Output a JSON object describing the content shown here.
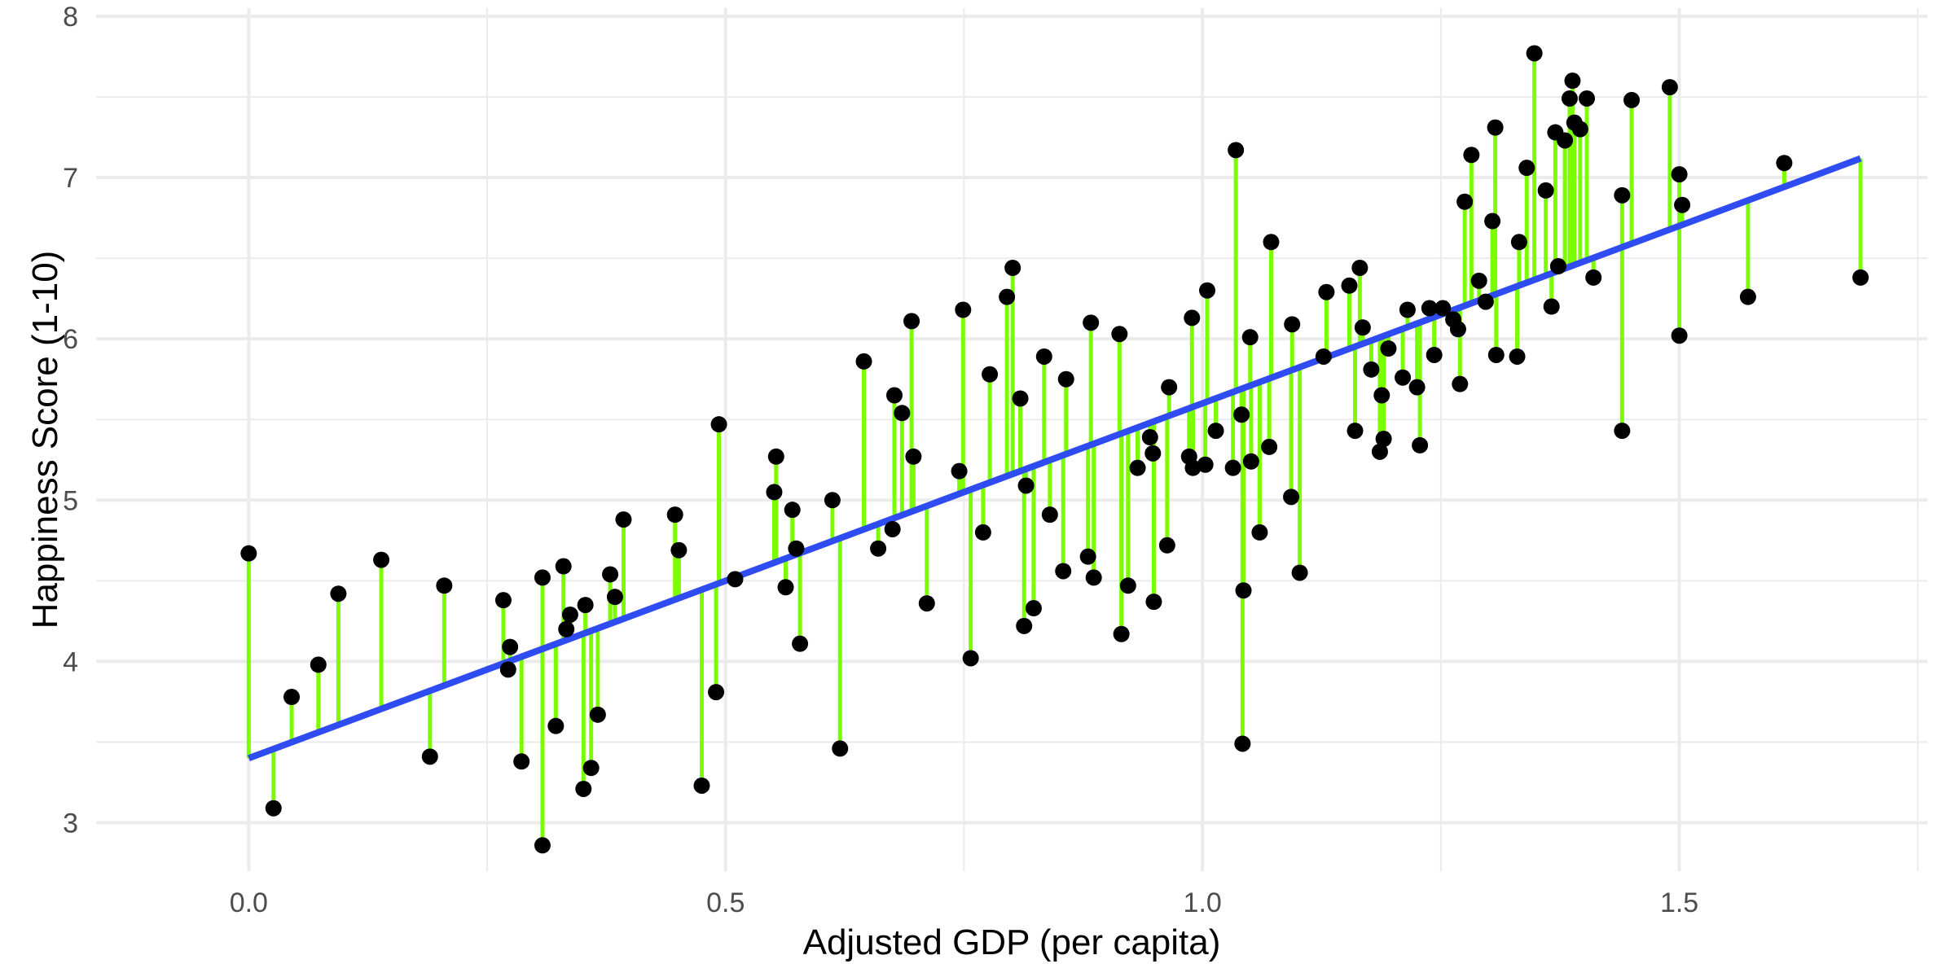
{
  "chart_data": {
    "type": "scatter",
    "title": "",
    "xlabel": "Adjusted GDP (per capita)",
    "ylabel": "Happiness Score (1-10)",
    "xlim": [
      -0.16,
      1.76
    ],
    "ylim": [
      2.7,
      8.05
    ],
    "x_ticks": [
      0.0,
      0.5,
      1.0,
      1.5
    ],
    "x_tick_labels": [
      "0.0",
      "0.5",
      "1.0",
      "1.5"
    ],
    "y_ticks": [
      3,
      4,
      5,
      6,
      7,
      8
    ],
    "y_tick_labels": [
      "3",
      "4",
      "5",
      "6",
      "7",
      "8"
    ],
    "grid": true,
    "legend": "none",
    "regression_line": {
      "intercept": 3.4,
      "slope": 2.2
    },
    "colors": {
      "points": "#000000",
      "residuals": "#7cfc00",
      "fit": "#2e4cf2",
      "grid": "#ebebeb"
    },
    "points": [
      {
        "x": 0.0,
        "y": 4.67
      },
      {
        "x": 0.026,
        "y": 3.09
      },
      {
        "x": 0.045,
        "y": 3.78
      },
      {
        "x": 0.073,
        "y": 3.98
      },
      {
        "x": 0.094,
        "y": 4.42
      },
      {
        "x": 0.139,
        "y": 4.63
      },
      {
        "x": 0.19,
        "y": 3.41
      },
      {
        "x": 0.205,
        "y": 4.47
      },
      {
        "x": 0.267,
        "y": 4.38
      },
      {
        "x": 0.274,
        "y": 4.09
      },
      {
        "x": 0.272,
        "y": 3.95
      },
      {
        "x": 0.286,
        "y": 3.38
      },
      {
        "x": 0.308,
        "y": 4.52
      },
      {
        "x": 0.308,
        "y": 2.86
      },
      {
        "x": 0.322,
        "y": 3.6
      },
      {
        "x": 0.33,
        "y": 4.59
      },
      {
        "x": 0.333,
        "y": 4.2
      },
      {
        "x": 0.337,
        "y": 4.29
      },
      {
        "x": 0.351,
        "y": 3.21
      },
      {
        "x": 0.353,
        "y": 4.35
      },
      {
        "x": 0.359,
        "y": 3.34
      },
      {
        "x": 0.366,
        "y": 3.67
      },
      {
        "x": 0.379,
        "y": 4.54
      },
      {
        "x": 0.384,
        "y": 4.4
      },
      {
        "x": 0.393,
        "y": 4.88
      },
      {
        "x": 0.447,
        "y": 4.91
      },
      {
        "x": 0.451,
        "y": 4.69
      },
      {
        "x": 0.475,
        "y": 3.23
      },
      {
        "x": 0.49,
        "y": 3.81
      },
      {
        "x": 0.493,
        "y": 5.47
      },
      {
        "x": 0.51,
        "y": 4.51
      },
      {
        "x": 0.551,
        "y": 5.05
      },
      {
        "x": 0.553,
        "y": 5.27
      },
      {
        "x": 0.563,
        "y": 4.46
      },
      {
        "x": 0.57,
        "y": 4.94
      },
      {
        "x": 0.574,
        "y": 4.7
      },
      {
        "x": 0.578,
        "y": 4.11
      },
      {
        "x": 0.612,
        "y": 5.0
      },
      {
        "x": 0.62,
        "y": 3.46
      },
      {
        "x": 0.645,
        "y": 5.86
      },
      {
        "x": 0.66,
        "y": 4.7
      },
      {
        "x": 0.675,
        "y": 4.82
      },
      {
        "x": 0.677,
        "y": 5.65
      },
      {
        "x": 0.685,
        "y": 5.54
      },
      {
        "x": 0.695,
        "y": 6.11
      },
      {
        "x": 0.697,
        "y": 5.27
      },
      {
        "x": 0.711,
        "y": 4.36
      },
      {
        "x": 0.745,
        "y": 5.18
      },
      {
        "x": 0.749,
        "y": 6.18
      },
      {
        "x": 0.757,
        "y": 4.02
      },
      {
        "x": 0.77,
        "y": 4.8
      },
      {
        "x": 0.777,
        "y": 5.78
      },
      {
        "x": 0.795,
        "y": 6.26
      },
      {
        "x": 0.801,
        "y": 6.44
      },
      {
        "x": 0.809,
        "y": 5.63
      },
      {
        "x": 0.813,
        "y": 4.22
      },
      {
        "x": 0.815,
        "y": 5.09
      },
      {
        "x": 0.823,
        "y": 4.33
      },
      {
        "x": 0.834,
        "y": 5.89
      },
      {
        "x": 0.84,
        "y": 4.91
      },
      {
        "x": 0.854,
        "y": 4.56
      },
      {
        "x": 0.857,
        "y": 5.75
      },
      {
        "x": 0.88,
        "y": 4.65
      },
      {
        "x": 0.883,
        "y": 6.1
      },
      {
        "x": 0.886,
        "y": 4.52
      },
      {
        "x": 0.913,
        "y": 6.03
      },
      {
        "x": 0.915,
        "y": 4.17
      },
      {
        "x": 0.922,
        "y": 4.47
      },
      {
        "x": 0.932,
        "y": 5.2
      },
      {
        "x": 0.945,
        "y": 5.39
      },
      {
        "x": 0.948,
        "y": 5.29
      },
      {
        "x": 0.949,
        "y": 4.37
      },
      {
        "x": 0.963,
        "y": 4.72
      },
      {
        "x": 0.965,
        "y": 5.7
      },
      {
        "x": 0.986,
        "y": 5.27
      },
      {
        "x": 0.989,
        "y": 6.13
      },
      {
        "x": 0.99,
        "y": 5.2
      },
      {
        "x": 1.003,
        "y": 5.22
      },
      {
        "x": 1.005,
        "y": 6.3
      },
      {
        "x": 1.014,
        "y": 5.43
      },
      {
        "x": 1.032,
        "y": 5.2
      },
      {
        "x": 1.035,
        "y": 7.17
      },
      {
        "x": 1.041,
        "y": 5.53
      },
      {
        "x": 1.043,
        "y": 4.44
      },
      {
        "x": 1.042,
        "y": 3.49
      },
      {
        "x": 1.05,
        "y": 6.01
      },
      {
        "x": 1.051,
        "y": 5.24
      },
      {
        "x": 1.06,
        "y": 4.8
      },
      {
        "x": 1.07,
        "y": 5.33
      },
      {
        "x": 1.072,
        "y": 6.6
      },
      {
        "x": 1.093,
        "y": 5.02
      },
      {
        "x": 1.094,
        "y": 6.09
      },
      {
        "x": 1.102,
        "y": 4.55
      },
      {
        "x": 1.127,
        "y": 5.89
      },
      {
        "x": 1.13,
        "y": 6.29
      },
      {
        "x": 1.154,
        "y": 6.33
      },
      {
        "x": 1.16,
        "y": 5.43
      },
      {
        "x": 1.165,
        "y": 6.44
      },
      {
        "x": 1.168,
        "y": 6.07
      },
      {
        "x": 1.177,
        "y": 5.81
      },
      {
        "x": 1.186,
        "y": 5.3
      },
      {
        "x": 1.188,
        "y": 5.65
      },
      {
        "x": 1.19,
        "y": 5.38
      },
      {
        "x": 1.195,
        "y": 5.94
      },
      {
        "x": 1.21,
        "y": 5.76
      },
      {
        "x": 1.215,
        "y": 6.18
      },
      {
        "x": 1.225,
        "y": 5.7
      },
      {
        "x": 1.228,
        "y": 5.34
      },
      {
        "x": 1.238,
        "y": 6.19
      },
      {
        "x": 1.243,
        "y": 5.9
      },
      {
        "x": 1.252,
        "y": 6.19
      },
      {
        "x": 1.263,
        "y": 6.12
      },
      {
        "x": 1.268,
        "y": 6.06
      },
      {
        "x": 1.27,
        "y": 5.72
      },
      {
        "x": 1.275,
        "y": 6.85
      },
      {
        "x": 1.282,
        "y": 7.14
      },
      {
        "x": 1.29,
        "y": 6.36
      },
      {
        "x": 1.297,
        "y": 6.23
      },
      {
        "x": 1.304,
        "y": 6.73
      },
      {
        "x": 1.307,
        "y": 7.31
      },
      {
        "x": 1.308,
        "y": 5.9
      },
      {
        "x": 1.33,
        "y": 5.89
      },
      {
        "x": 1.332,
        "y": 6.6
      },
      {
        "x": 1.34,
        "y": 7.06
      },
      {
        "x": 1.348,
        "y": 7.77
      },
      {
        "x": 1.36,
        "y": 6.92
      },
      {
        "x": 1.366,
        "y": 6.2
      },
      {
        "x": 1.37,
        "y": 7.28
      },
      {
        "x": 1.373,
        "y": 6.45
      },
      {
        "x": 1.38,
        "y": 7.23
      },
      {
        "x": 1.385,
        "y": 7.49
      },
      {
        "x": 1.388,
        "y": 7.6
      },
      {
        "x": 1.39,
        "y": 7.34
      },
      {
        "x": 1.396,
        "y": 7.3
      },
      {
        "x": 1.403,
        "y": 7.49
      },
      {
        "x": 1.41,
        "y": 6.38
      },
      {
        "x": 1.44,
        "y": 6.89
      },
      {
        "x": 1.44,
        "y": 5.43
      },
      {
        "x": 1.45,
        "y": 7.48
      },
      {
        "x": 1.49,
        "y": 7.56
      },
      {
        "x": 1.5,
        "y": 7.02
      },
      {
        "x": 1.503,
        "y": 6.83
      },
      {
        "x": 1.5,
        "y": 6.02
      },
      {
        "x": 1.572,
        "y": 6.26
      },
      {
        "x": 1.61,
        "y": 7.09
      },
      {
        "x": 1.69,
        "y": 6.38
      }
    ]
  }
}
